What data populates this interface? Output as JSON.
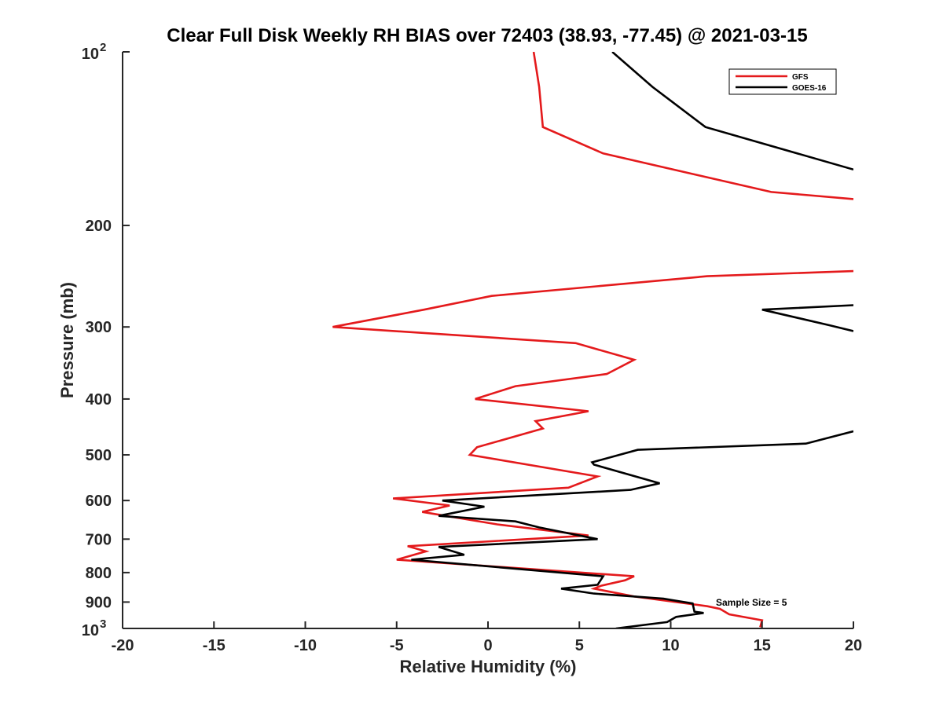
{
  "chart_data": {
    "type": "line",
    "title": "Clear Full Disk Weekly RH BIAS over 72403 (38.93, -77.45) @ 2021-03-15",
    "xlabel": "Relative Humidity (%)",
    "ylabel": "Pressure (mb)",
    "xlim": [
      -20,
      20
    ],
    "ylim": [
      100,
      1000
    ],
    "y_scale": "log",
    "y_reversed": true,
    "grid": false,
    "legend_position": "top-right",
    "x_ticks": [
      -20,
      -15,
      -10,
      -5,
      0,
      5,
      10,
      15,
      20
    ],
    "x_tick_labels": [
      "-20",
      "-15",
      "-10",
      "-5",
      "0",
      "5",
      "10",
      "15",
      "20"
    ],
    "y_ticks": [
      100,
      200,
      300,
      400,
      500,
      600,
      700,
      800,
      900,
      1000
    ],
    "y_tick_labels": [
      {
        "base": "10",
        "exp": "2"
      },
      {
        "base": "200",
        "exp": ""
      },
      {
        "base": "300",
        "exp": ""
      },
      {
        "base": "400",
        "exp": ""
      },
      {
        "base": "500",
        "exp": ""
      },
      {
        "base": "600",
        "exp": ""
      },
      {
        "base": "700",
        "exp": ""
      },
      {
        "base": "800",
        "exp": ""
      },
      {
        "base": "900",
        "exp": ""
      },
      {
        "base": "10",
        "exp": "3"
      }
    ],
    "annotation": "Sample Size = 5",
    "series": [
      {
        "name": "GFS",
        "color": "#e41a1c",
        "segments": [
          [
            {
              "x": 2.5,
              "p": 100
            },
            {
              "x": 2.8,
              "p": 115
            },
            {
              "x": 3.0,
              "p": 135
            },
            {
              "x": 6.3,
              "p": 150
            },
            {
              "x": 15.5,
              "p": 175
            },
            {
              "x": 20.0,
              "p": 180
            }
          ],
          [
            {
              "x": 20.0,
              "p": 240
            },
            {
              "x": 12.0,
              "p": 245
            },
            {
              "x": 0.2,
              "p": 265
            },
            {
              "x": -3.5,
              "p": 280
            },
            {
              "x": -8.5,
              "p": 300
            },
            {
              "x": 4.8,
              "p": 320
            },
            {
              "x": 8.0,
              "p": 342
            },
            {
              "x": 6.5,
              "p": 362
            },
            {
              "x": 1.5,
              "p": 380
            },
            {
              "x": -0.7,
              "p": 400
            },
            {
              "x": 5.5,
              "p": 420
            },
            {
              "x": 2.6,
              "p": 437
            },
            {
              "x": 3.0,
              "p": 450
            },
            {
              "x": -0.6,
              "p": 485
            },
            {
              "x": -1.0,
              "p": 500
            },
            {
              "x": 6.0,
              "p": 545
            },
            {
              "x": 4.4,
              "p": 570
            },
            {
              "x": -5.2,
              "p": 595
            },
            {
              "x": -2.1,
              "p": 612
            },
            {
              "x": -3.6,
              "p": 628
            },
            {
              "x": 0.5,
              "p": 660
            },
            {
              "x": 5.5,
              "p": 690
            },
            {
              "x": -4.4,
              "p": 720
            },
            {
              "x": -3.4,
              "p": 735
            },
            {
              "x": -5.0,
              "p": 760
            },
            {
              "x": 8.0,
              "p": 812
            },
            {
              "x": 7.5,
              "p": 825
            },
            {
              "x": 6.2,
              "p": 843
            },
            {
              "x": 5.8,
              "p": 853
            },
            {
              "x": 8.0,
              "p": 880
            },
            {
              "x": 12.0,
              "p": 915
            },
            {
              "x": 12.7,
              "p": 925
            },
            {
              "x": 13.2,
              "p": 945
            },
            {
              "x": 15.0,
              "p": 968
            },
            {
              "x": 14.9,
              "p": 995
            }
          ]
        ]
      },
      {
        "name": "GOES-16",
        "color": "#000000",
        "segments": [
          [
            {
              "x": 6.8,
              "p": 100
            },
            {
              "x": 9.0,
              "p": 115
            },
            {
              "x": 11.9,
              "p": 135
            },
            {
              "x": 20.0,
              "p": 160
            }
          ],
          [
            {
              "x": 20.0,
              "p": 275
            },
            {
              "x": 15.0,
              "p": 280
            },
            {
              "x": 18.7,
              "p": 298
            },
            {
              "x": 20.0,
              "p": 305
            }
          ],
          [
            {
              "x": 20.0,
              "p": 455
            },
            {
              "x": 17.4,
              "p": 478
            },
            {
              "x": 8.2,
              "p": 490
            },
            {
              "x": 5.7,
              "p": 515
            },
            {
              "x": 5.8,
              "p": 520
            },
            {
              "x": 9.4,
              "p": 560
            },
            {
              "x": 7.8,
              "p": 575
            },
            {
              "x": -2.5,
              "p": 600
            },
            {
              "x": -0.2,
              "p": 615
            },
            {
              "x": -2.7,
              "p": 638
            },
            {
              "x": 1.5,
              "p": 652
            },
            {
              "x": 2.8,
              "p": 668
            },
            {
              "x": 6.0,
              "p": 700
            },
            {
              "x": -2.7,
              "p": 722
            },
            {
              "x": -1.3,
              "p": 745
            },
            {
              "x": -4.2,
              "p": 760
            },
            {
              "x": 6.3,
              "p": 812
            },
            {
              "x": 6.0,
              "p": 840
            },
            {
              "x": 4.0,
              "p": 853
            },
            {
              "x": 5.8,
              "p": 870
            },
            {
              "x": 9.6,
              "p": 888
            },
            {
              "x": 11.2,
              "p": 905
            },
            {
              "x": 11.3,
              "p": 935
            },
            {
              "x": 11.8,
              "p": 940
            },
            {
              "x": 10.3,
              "p": 955
            },
            {
              "x": 9.8,
              "p": 975
            },
            {
              "x": 7.0,
              "p": 1000
            }
          ]
        ]
      }
    ]
  }
}
